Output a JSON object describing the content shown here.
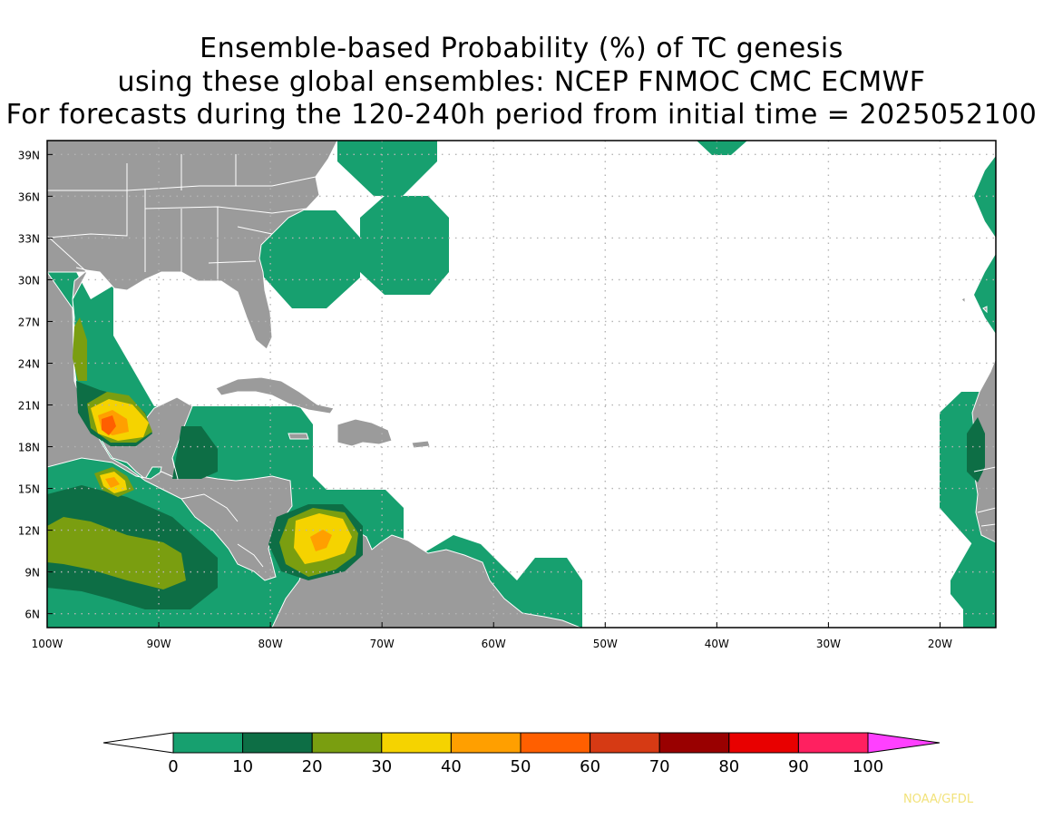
{
  "title": {
    "line1": "Ensemble-based Probability (%) of TC genesis",
    "line2": "using these global ensembles:   NCEP FNMOC CMC ECMWF",
    "line3": "For forecasts during the 120-240h period from initial time = 2025052100"
  },
  "map": {
    "lon_range": [
      -100,
      -15
    ],
    "lat_range": [
      5,
      40
    ],
    "lat_ticks": [
      {
        "value": 39,
        "label": "39N"
      },
      {
        "value": 36,
        "label": "36N"
      },
      {
        "value": 33,
        "label": "33N"
      },
      {
        "value": 30,
        "label": "30N"
      },
      {
        "value": 27,
        "label": "27N"
      },
      {
        "value": 24,
        "label": "24N"
      },
      {
        "value": 21,
        "label": "21N"
      },
      {
        "value": 18,
        "label": "18N"
      },
      {
        "value": 15,
        "label": "15N"
      },
      {
        "value": 12,
        "label": "12N"
      },
      {
        "value": 9,
        "label": "9N"
      },
      {
        "value": 6,
        "label": "6N"
      }
    ],
    "lon_ticks": [
      {
        "value": -100,
        "label": "100W"
      },
      {
        "value": -90,
        "label": "90W"
      },
      {
        "value": -80,
        "label": "80W"
      },
      {
        "value": -70,
        "label": "70W"
      },
      {
        "value": -60,
        "label": "60W"
      },
      {
        "value": -50,
        "label": "50W"
      },
      {
        "value": -40,
        "label": "40W"
      },
      {
        "value": -30,
        "label": "30W"
      },
      {
        "value": -20,
        "label": "20W"
      }
    ],
    "land_color": "#9b9b9b",
    "grid": true
  },
  "legend": {
    "colors": [
      "#17a06f",
      "#0d6e45",
      "#7a9e10",
      "#f5d300",
      "#ff9f00",
      "#ff5f00",
      "#d63a14",
      "#990000",
      "#e80000",
      "#ff2060"
    ],
    "over_color": "#ff40ff",
    "under_color": "#ffffff",
    "labels": [
      "0",
      "10",
      "20",
      "30",
      "40",
      "50",
      "60",
      "70",
      "80",
      "90",
      "100"
    ]
  },
  "credit": "NOAA/GFDL"
}
